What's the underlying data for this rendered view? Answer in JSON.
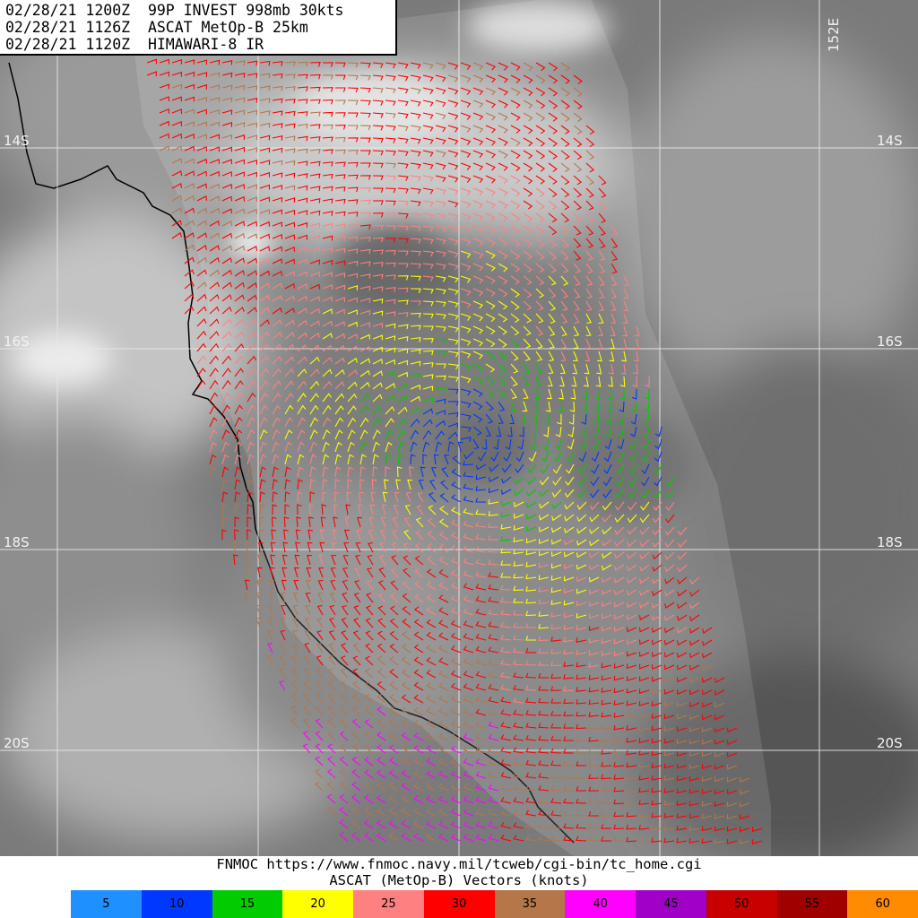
{
  "header": {
    "line1": "02/28/21 1200Z  99P INVEST 998mb 30kts",
    "line2": "02/28/21 1126Z  ASCAT MetOp-B 25km",
    "line3": "02/28/21 1120Z  HIMAWARI-8 IR"
  },
  "grid": {
    "lat_labels": [
      "14S",
      "16S",
      "18S",
      "20S"
    ],
    "lon_label": "152E"
  },
  "footer": {
    "url_line": "FNMOC https://www.fnmoc.navy.mil/tcweb/cgi-bin/tc_home.cgi",
    "legend_title": "ASCAT (MetOp-B) Vectors (knots)"
  },
  "colorbar": [
    {
      "label": "5",
      "color": "#1e90ff"
    },
    {
      "label": "10",
      "color": "#0038ff"
    },
    {
      "label": "15",
      "color": "#00cc00"
    },
    {
      "label": "20",
      "color": "#ffff00"
    },
    {
      "label": "25",
      "color": "#ff8080"
    },
    {
      "label": "30",
      "color": "#ff0000"
    },
    {
      "label": "35",
      "color": "#b5764a"
    },
    {
      "label": "40",
      "color": "#ff00ff"
    },
    {
      "label": "45",
      "color": "#a000c8"
    },
    {
      "label": "50",
      "color": "#c80000"
    },
    {
      "label": "55",
      "color": "#a00000"
    },
    {
      "label": "60",
      "color": "#ff8c00"
    }
  ]
}
